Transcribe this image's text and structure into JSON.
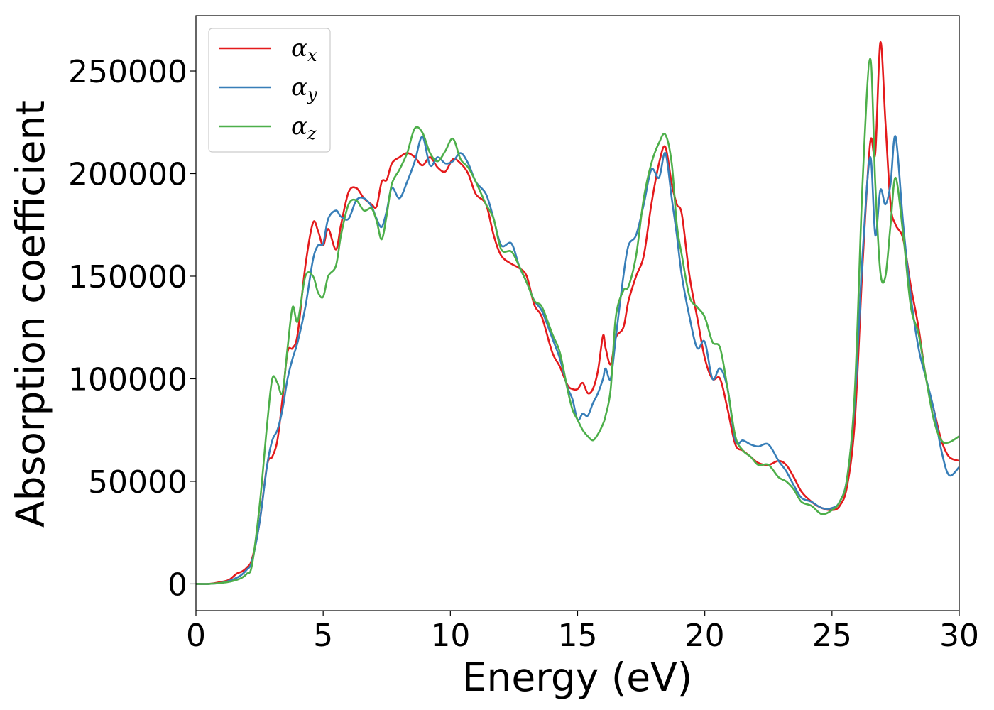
{
  "chart_data": {
    "type": "line",
    "title": "",
    "xlabel": "Energy (eV)",
    "ylabel": "Absorption coefficient",
    "xlim": [
      0,
      30
    ],
    "ylim": [
      -13000,
      277000
    ],
    "xticks": [
      0,
      5,
      10,
      15,
      20,
      25,
      30
    ],
    "yticks": [
      0,
      50000,
      100000,
      150000,
      200000,
      250000
    ],
    "grid": false,
    "legend_position": "upper-left",
    "series": [
      {
        "name": "α_x",
        "symbol": "α",
        "subscript": "x",
        "color": "#e41a1c",
        "x": [
          0,
          0.5,
          1.0,
          1.3,
          1.6,
          1.8,
          2.0,
          2.2,
          2.5,
          2.8,
          3.0,
          3.2,
          3.4,
          3.6,
          3.8,
          4.0,
          4.3,
          4.6,
          4.8,
          5.0,
          5.2,
          5.5,
          5.7,
          6.0,
          6.3,
          6.6,
          6.9,
          7.1,
          7.3,
          7.5,
          7.7,
          8.0,
          8.3,
          8.6,
          8.9,
          9.2,
          9.5,
          9.8,
          10.1,
          10.4,
          10.7,
          11.0,
          11.4,
          11.7,
          12.0,
          12.4,
          12.7,
          13.0,
          13.3,
          13.6,
          14.0,
          14.3,
          14.6,
          14.8,
          15.0,
          15.2,
          15.4,
          15.6,
          15.8,
          16.0,
          16.1,
          16.3,
          16.5,
          16.8,
          17.0,
          17.3,
          17.6,
          17.9,
          18.2,
          18.45,
          18.7,
          18.9,
          19.1,
          19.4,
          19.7,
          20.0,
          20.3,
          20.6,
          20.9,
          21.2,
          21.5,
          21.8,
          22.1,
          22.5,
          22.9,
          23.2,
          23.5,
          23.8,
          24.2,
          24.6,
          25.0,
          25.3,
          25.6,
          25.9,
          26.2,
          26.5,
          26.7,
          26.9,
          27.1,
          27.3,
          27.5,
          27.8,
          28.1,
          28.4,
          28.7,
          29.0,
          29.3,
          29.6,
          30.0
        ],
        "y": [
          0,
          0,
          1000,
          2000,
          5000,
          6000,
          8000,
          12000,
          30000,
          58000,
          62000,
          70000,
          90000,
          113000,
          115000,
          122000,
          155000,
          176000,
          172000,
          165000,
          173000,
          163000,
          175000,
          191000,
          193000,
          188000,
          185000,
          184000,
          196000,
          197000,
          205000,
          208000,
          210000,
          208000,
          204000,
          208000,
          203000,
          201000,
          207000,
          205000,
          200000,
          190000,
          185000,
          170000,
          160000,
          156000,
          154000,
          150000,
          136000,
          130000,
          113000,
          106000,
          97000,
          95000,
          95000,
          98000,
          93000,
          95000,
          104000,
          121000,
          115000,
          107000,
          120000,
          125000,
          138000,
          150000,
          160000,
          185000,
          205000,
          213000,
          195000,
          185000,
          180000,
          150000,
          130000,
          110000,
          100000,
          100000,
          85000,
          68000,
          65000,
          62000,
          59000,
          58000,
          60000,
          58000,
          52000,
          45000,
          40000,
          37000,
          36000,
          38000,
          48000,
          80000,
          155000,
          215000,
          210000,
          264000,
          225000,
          185000,
          175000,
          168000,
          145000,
          125000,
          100000,
          85000,
          70000,
          62000,
          60000
        ]
      },
      {
        "name": "α_y",
        "symbol": "α",
        "subscript": "y",
        "color": "#377eb8",
        "x": [
          0,
          0.5,
          1.0,
          1.3,
          1.6,
          1.8,
          2.0,
          2.2,
          2.5,
          2.8,
          3.0,
          3.2,
          3.4,
          3.6,
          3.8,
          4.0,
          4.3,
          4.6,
          4.8,
          5.0,
          5.2,
          5.5,
          5.7,
          6.0,
          6.3,
          6.6,
          6.9,
          7.1,
          7.3,
          7.5,
          7.7,
          8.0,
          8.3,
          8.6,
          8.9,
          9.2,
          9.5,
          9.8,
          10.1,
          10.4,
          10.7,
          11.0,
          11.4,
          11.7,
          12.0,
          12.4,
          12.7,
          13.0,
          13.3,
          13.6,
          14.0,
          14.3,
          14.6,
          14.8,
          15.0,
          15.2,
          15.4,
          15.6,
          15.8,
          16.0,
          16.1,
          16.3,
          16.5,
          16.8,
          17.0,
          17.3,
          17.6,
          17.9,
          18.2,
          18.45,
          18.7,
          18.9,
          19.1,
          19.4,
          19.7,
          20.0,
          20.3,
          20.6,
          20.9,
          21.2,
          21.5,
          21.8,
          22.1,
          22.5,
          22.9,
          23.2,
          23.5,
          23.8,
          24.2,
          24.6,
          25.0,
          25.3,
          25.6,
          25.9,
          26.2,
          26.5,
          26.7,
          26.9,
          27.1,
          27.3,
          27.5,
          27.8,
          28.1,
          28.4,
          28.7,
          29.0,
          29.3,
          29.6,
          30.0
        ],
        "y": [
          0,
          0,
          500,
          1500,
          3000,
          4500,
          7000,
          11000,
          30000,
          58000,
          70000,
          75000,
          85000,
          100000,
          110000,
          118000,
          135000,
          158000,
          165000,
          166000,
          178000,
          182000,
          179000,
          178000,
          187000,
          188000,
          184000,
          178000,
          174000,
          182000,
          193000,
          188000,
          196000,
          206000,
          218000,
          204000,
          208000,
          205000,
          206000,
          210000,
          205000,
          196000,
          190000,
          178000,
          165000,
          166000,
          155000,
          147000,
          138000,
          133000,
          120000,
          110000,
          96000,
          90000,
          80000,
          83000,
          82000,
          88000,
          93000,
          100000,
          105000,
          100000,
          120000,
          150000,
          165000,
          170000,
          185000,
          202000,
          198000,
          210000,
          188000,
          170000,
          150000,
          130000,
          115000,
          118000,
          100000,
          105000,
          95000,
          70000,
          70000,
          68000,
          67000,
          68000,
          60000,
          55000,
          48000,
          42000,
          40000,
          37000,
          37000,
          40000,
          52000,
          90000,
          160000,
          208000,
          170000,
          192000,
          185000,
          195000,
          218000,
          175000,
          140000,
          115000,
          100000,
          85000,
          65000,
          53000,
          57000
        ]
      },
      {
        "name": "α_z",
        "symbol": "α",
        "subscript": "z",
        "color": "#4daf4a",
        "x": [
          0,
          0.5,
          1.0,
          1.3,
          1.6,
          1.8,
          2.0,
          2.2,
          2.5,
          2.8,
          3.0,
          3.2,
          3.4,
          3.6,
          3.8,
          4.0,
          4.3,
          4.6,
          4.8,
          5.0,
          5.2,
          5.5,
          5.7,
          6.0,
          6.3,
          6.6,
          6.9,
          7.1,
          7.3,
          7.5,
          7.7,
          8.0,
          8.3,
          8.6,
          8.9,
          9.2,
          9.5,
          9.8,
          10.1,
          10.4,
          10.7,
          11.0,
          11.4,
          11.7,
          12.0,
          12.4,
          12.7,
          13.0,
          13.3,
          13.6,
          14.0,
          14.3,
          14.6,
          14.8,
          15.0,
          15.2,
          15.4,
          15.6,
          15.8,
          16.0,
          16.1,
          16.3,
          16.5,
          16.8,
          17.0,
          17.3,
          17.6,
          17.9,
          18.2,
          18.45,
          18.7,
          18.9,
          19.1,
          19.4,
          19.7,
          20.0,
          20.3,
          20.6,
          20.9,
          21.2,
          21.5,
          21.8,
          22.1,
          22.5,
          22.9,
          23.2,
          23.5,
          23.8,
          24.2,
          24.6,
          25.0,
          25.3,
          25.6,
          25.9,
          26.2,
          26.5,
          26.7,
          26.9,
          27.1,
          27.3,
          27.5,
          27.8,
          28.1,
          28.4,
          28.7,
          29.0,
          29.3,
          29.6,
          30.0
        ],
        "y": [
          0,
          0,
          500,
          1000,
          2000,
          3000,
          5000,
          9000,
          38000,
          78000,
          100000,
          98000,
          93000,
          115000,
          135000,
          128000,
          150000,
          150000,
          142000,
          140000,
          150000,
          155000,
          170000,
          185000,
          187000,
          182000,
          183000,
          177000,
          168000,
          180000,
          195000,
          202000,
          210000,
          222000,
          220000,
          210000,
          206000,
          211000,
          217000,
          207000,
          203000,
          196000,
          185000,
          178000,
          163000,
          162000,
          155000,
          147000,
          138000,
          135000,
          122000,
          113000,
          95000,
          85000,
          80000,
          75000,
          72000,
          70000,
          73000,
          78000,
          82000,
          95000,
          130000,
          143000,
          145000,
          160000,
          188000,
          205000,
          215000,
          219000,
          205000,
          175000,
          160000,
          140000,
          135000,
          130000,
          118000,
          115000,
          95000,
          72000,
          65000,
          62000,
          58000,
          58000,
          52000,
          50000,
          46000,
          40000,
          38000,
          34000,
          36000,
          40000,
          52000,
          95000,
          195000,
          256000,
          195000,
          152000,
          150000,
          175000,
          198000,
          170000,
          135000,
          122000,
          100000,
          80000,
          70000,
          69000,
          72000
        ]
      }
    ]
  }
}
